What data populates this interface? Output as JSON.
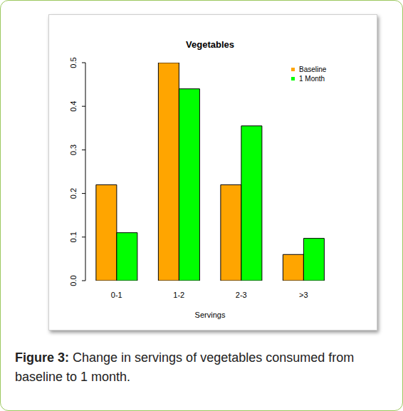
{
  "chart_data": {
    "type": "bar",
    "title": "Vegetables",
    "x_label": "Servings",
    "categories": [
      "0-1",
      "1-2",
      "2-3",
      ">3"
    ],
    "series": [
      {
        "name": "Baseline",
        "color": "#ffa500",
        "values": [
          0.22,
          0.5,
          0.22,
          0.06
        ]
      },
      {
        "name": "1 Month",
        "color": "#00ff00",
        "values": [
          0.11,
          0.44,
          0.355,
          0.097
        ]
      }
    ],
    "ylim": [
      0,
      0.5
    ],
    "yticks": [
      {
        "value": 0,
        "label": "0.0"
      },
      0.1,
      0.2,
      0.3,
      0.4,
      0.5
    ],
    "grid": false,
    "legend": "top right"
  },
  "caption": {
    "label": "Figure 3:",
    "text": "Change in servings of vegetables consumed from baseline to 1 month."
  }
}
